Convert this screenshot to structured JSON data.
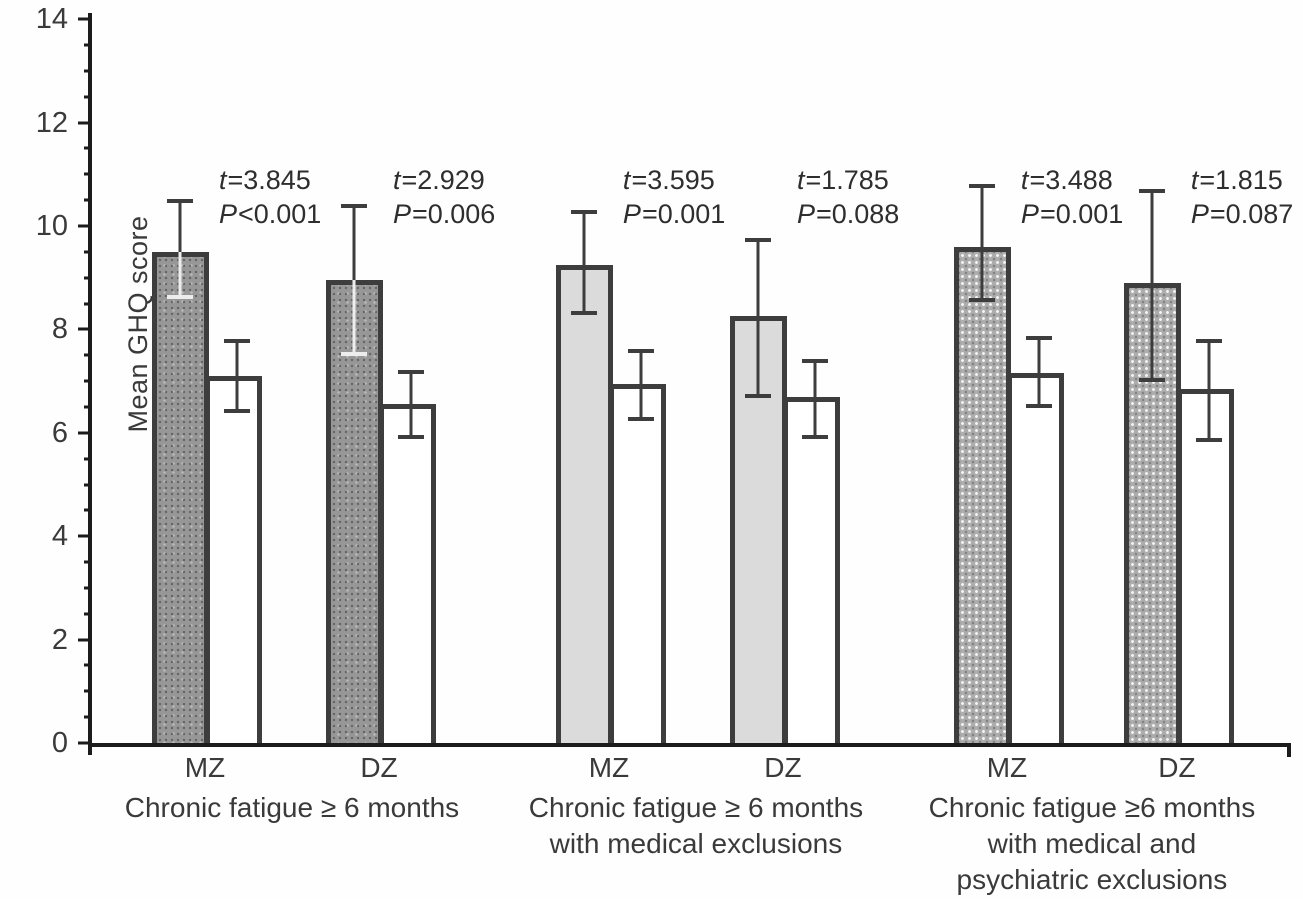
{
  "chart_data": {
    "type": "bar",
    "title": "",
    "ylabel": "Mean GHQ score",
    "ylim": [
      0,
      14
    ],
    "yticks_major": [
      0,
      2,
      4,
      6,
      8,
      10,
      12,
      14
    ],
    "minor_tick_step": 0.5,
    "grid": "off",
    "legend": "none",
    "bar_roles": [
      "fatigued-twin-shaded",
      "co-twin-open"
    ],
    "groups": [
      {
        "label_lines": [
          "Chronic fatigue ≥ 6 months"
        ],
        "pattern": "dark-speckle",
        "pairs": [
          {
            "zygosity": "MZ",
            "stat_t_var": "t",
            "stat_t_rest": "=3.845",
            "stat_p_var": "P",
            "stat_p_rest": "<0.001",
            "bars": [
              {
                "role": "fatigued-twin",
                "value": 9.5,
                "err_low": 8.6,
                "err_high": 10.5
              },
              {
                "role": "co-twin",
                "value": 7.1,
                "err_low": 6.4,
                "err_high": 7.8
              }
            ]
          },
          {
            "zygosity": "DZ",
            "stat_t_var": "t",
            "stat_t_rest": "=2.929",
            "stat_p_var": "P",
            "stat_p_rest": "=0.006",
            "bars": [
              {
                "role": "fatigued-twin",
                "value": 8.95,
                "err_low": 7.5,
                "err_high": 10.4
              },
              {
                "role": "co-twin",
                "value": 6.55,
                "err_low": 5.9,
                "err_high": 7.2
              }
            ]
          }
        ]
      },
      {
        "label_lines": [
          "Chronic fatigue ≥ 6 months",
          "with medical exclusions"
        ],
        "pattern": "light",
        "pairs": [
          {
            "zygosity": "MZ",
            "stat_t_var": "t",
            "stat_t_rest": "=3.595",
            "stat_p_var": "P",
            "stat_p_rest": "=0.001",
            "bars": [
              {
                "role": "fatigued-twin",
                "value": 9.25,
                "err_low": 8.3,
                "err_high": 10.3
              },
              {
                "role": "co-twin",
                "value": 6.95,
                "err_low": 6.25,
                "err_high": 7.6
              }
            ]
          },
          {
            "zygosity": "DZ",
            "stat_t_var": "t",
            "stat_t_rest": "=1.785",
            "stat_p_var": "P",
            "stat_p_rest": "=0.088",
            "bars": [
              {
                "role": "fatigued-twin",
                "value": 8.25,
                "err_low": 6.7,
                "err_high": 9.75
              },
              {
                "role": "co-twin",
                "value": 6.7,
                "err_low": 5.9,
                "err_high": 7.4
              }
            ]
          }
        ]
      },
      {
        "label_lines": [
          "Chronic fatigue ≥6 months",
          "with medical and",
          "psychiatric exclusions"
        ],
        "pattern": "crosshatch",
        "pairs": [
          {
            "zygosity": "MZ",
            "stat_t_var": "t",
            "stat_t_rest": "=3.488",
            "stat_p_var": "P",
            "stat_p_rest": "=0.001",
            "bars": [
              {
                "role": "fatigued-twin",
                "value": 9.6,
                "err_low": 8.55,
                "err_high": 10.8
              },
              {
                "role": "co-twin",
                "value": 7.15,
                "err_low": 6.5,
                "err_high": 7.85
              }
            ]
          },
          {
            "zygosity": "DZ",
            "stat_t_var": "t",
            "stat_t_rest": "=1.815",
            "stat_p_var": "P",
            "stat_p_rest": "=0.087",
            "bars": [
              {
                "role": "fatigued-twin",
                "value": 8.9,
                "err_low": 7.0,
                "err_high": 10.7
              },
              {
                "role": "co-twin",
                "value": 6.85,
                "err_low": 5.85,
                "err_high": 7.8
              }
            ]
          }
        ]
      }
    ]
  }
}
